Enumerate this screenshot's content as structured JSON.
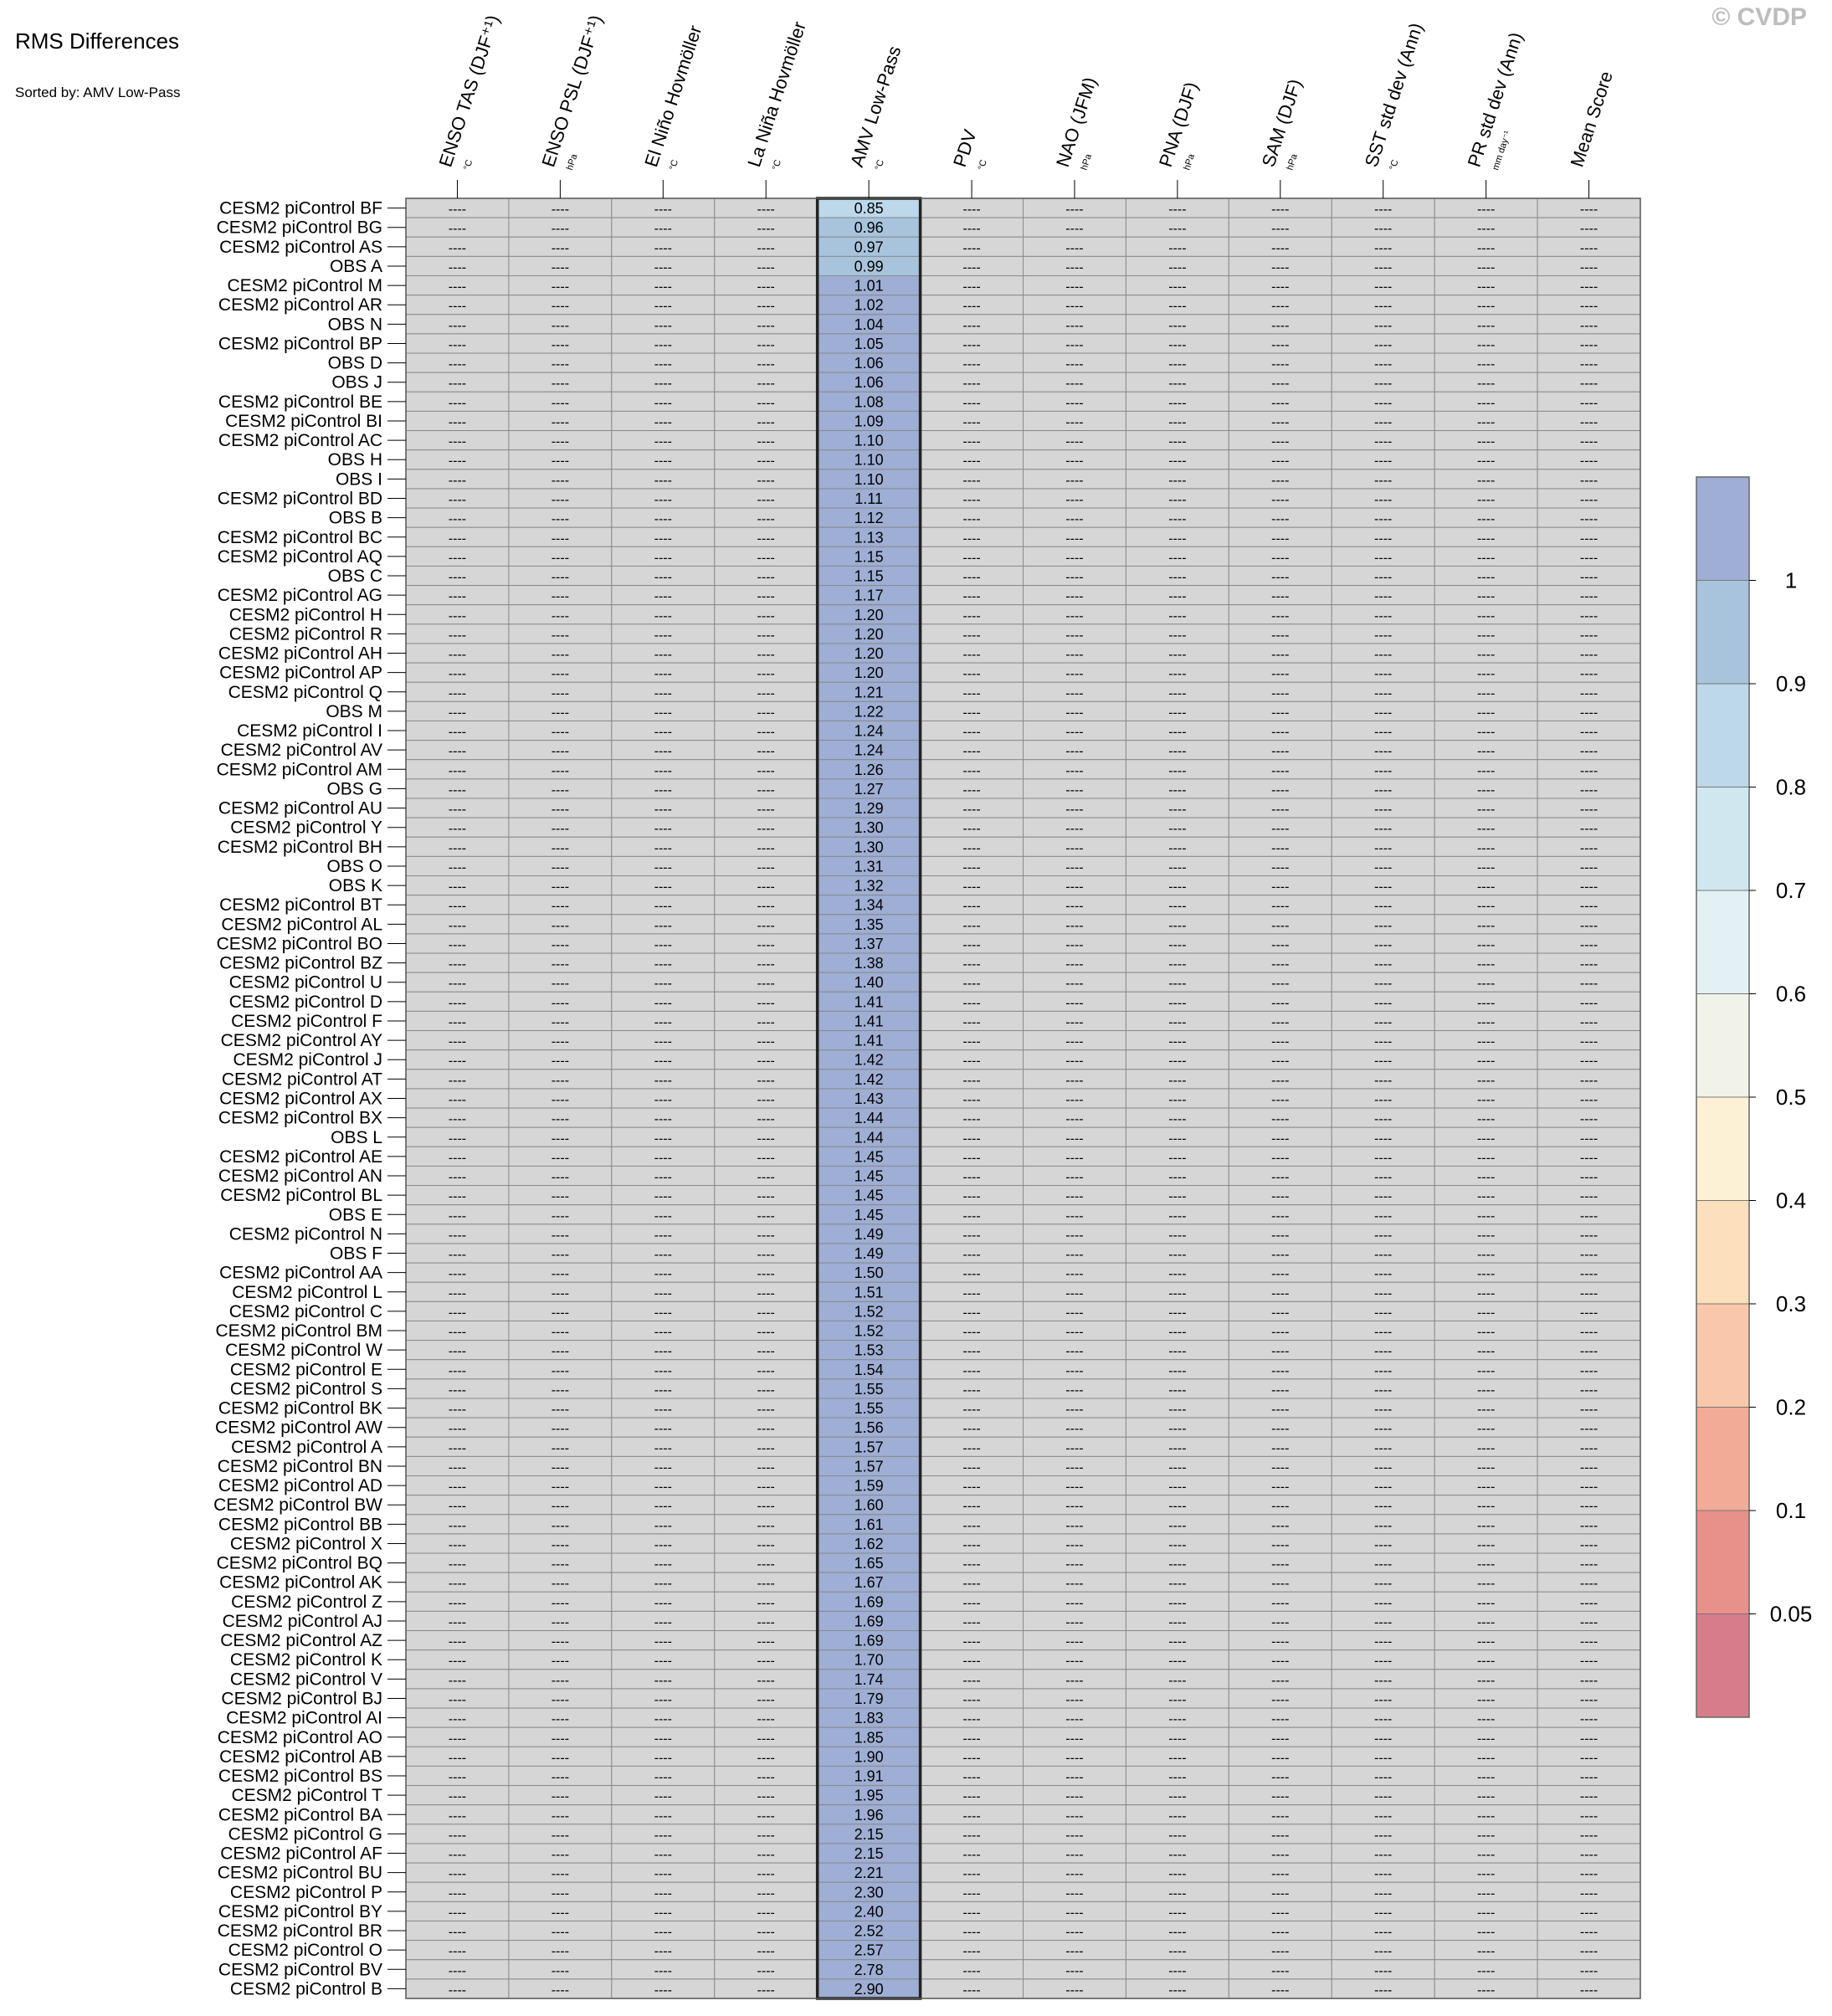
{
  "header": {
    "title": "RMS Differences",
    "subtitle": "Sorted by: AMV Low-Pass",
    "watermark": "© CVDP"
  },
  "chart_data": {
    "type": "heatmap",
    "columns": [
      {
        "label": "ENSO TAS (DJF⁺¹)",
        "unit": "°C"
      },
      {
        "label": "ENSO PSL (DJF⁺¹)",
        "unit": "hPa"
      },
      {
        "label": "El Niño Hovmöller",
        "unit": "°C"
      },
      {
        "label": "La Niña Hovmöller",
        "unit": "°C"
      },
      {
        "label": "AMV Low-Pass",
        "unit": "°C"
      },
      {
        "label": "PDV",
        "unit": "°C"
      },
      {
        "label": "NAO (JFM)",
        "unit": "hPa"
      },
      {
        "label": "PNA (DJF)",
        "unit": "hPa"
      },
      {
        "label": "SAM (DJF)",
        "unit": "hPa"
      },
      {
        "label": "SST std dev (Ann)",
        "unit": "°C"
      },
      {
        "label": "PR std dev (Ann)",
        "unit": "mm day⁻¹"
      },
      {
        "label": "Mean Score",
        "unit": ""
      }
    ],
    "highlighted_column": 4,
    "missing_symbol": "----",
    "missing_color": "#d6d6d6",
    "rows": [
      "CESM2 piControl BF",
      "CESM2 piControl BG",
      "CESM2 piControl AS",
      "OBS A",
      "CESM2 piControl M",
      "CESM2 piControl AR",
      "OBS N",
      "CESM2 piControl BP",
      "OBS D",
      "OBS J",
      "CESM2 piControl BE",
      "CESM2 piControl BI",
      "CESM2 piControl AC",
      "OBS H",
      "OBS I",
      "CESM2 piControl BD",
      "OBS B",
      "CESM2 piControl BC",
      "CESM2 piControl AQ",
      "OBS C",
      "CESM2 piControl AG",
      "CESM2 piControl H",
      "CESM2 piControl R",
      "CESM2 piControl AH",
      "CESM2 piControl AP",
      "CESM2 piControl Q",
      "OBS M",
      "CESM2 piControl I",
      "CESM2 piControl AV",
      "CESM2 piControl AM",
      "OBS G",
      "CESM2 piControl AU",
      "CESM2 piControl Y",
      "CESM2 piControl BH",
      "OBS O",
      "OBS K",
      "CESM2 piControl BT",
      "CESM2 piControl AL",
      "CESM2 piControl BO",
      "CESM2 piControl BZ",
      "CESM2 piControl U",
      "CESM2 piControl D",
      "CESM2 piControl F",
      "CESM2 piControl AY",
      "CESM2 piControl J",
      "CESM2 piControl AT",
      "CESM2 piControl AX",
      "CESM2 piControl BX",
      "OBS L",
      "CESM2 piControl AE",
      "CESM2 piControl AN",
      "CESM2 piControl BL",
      "OBS E",
      "CESM2 piControl N",
      "OBS F",
      "CESM2 piControl AA",
      "CESM2 piControl L",
      "CESM2 piControl C",
      "CESM2 piControl BM",
      "CESM2 piControl W",
      "CESM2 piControl E",
      "CESM2 piControl S",
      "CESM2 piControl BK",
      "CESM2 piControl AW",
      "CESM2 piControl A",
      "CESM2 piControl BN",
      "CESM2 piControl AD",
      "CESM2 piControl BW",
      "CESM2 piControl BB",
      "CESM2 piControl X",
      "CESM2 piControl BQ",
      "CESM2 piControl AK",
      "CESM2 piControl Z",
      "CESM2 piControl AJ",
      "CESM2 piControl AZ",
      "CESM2 piControl K",
      "CESM2 piControl V",
      "CESM2 piControl BJ",
      "CESM2 piControl AI",
      "CESM2 piControl AO",
      "CESM2 piControl AB",
      "CESM2 piControl BS",
      "CESM2 piControl T",
      "CESM2 piControl BA",
      "CESM2 piControl G",
      "CESM2 piControl AF",
      "CESM2 piControl BU",
      "CESM2 piControl P",
      "CESM2 piControl BY",
      "CESM2 piControl BR",
      "CESM2 piControl O",
      "CESM2 piControl BV",
      "CESM2 piControl B"
    ],
    "amv_values": [
      "0.85",
      "0.96",
      "0.97",
      "0.99",
      "1.01",
      "1.02",
      "1.04",
      "1.05",
      "1.06",
      "1.06",
      "1.08",
      "1.09",
      "1.10",
      "1.10",
      "1.10",
      "1.11",
      "1.12",
      "1.13",
      "1.15",
      "1.15",
      "1.17",
      "1.20",
      "1.20",
      "1.20",
      "1.20",
      "1.21",
      "1.22",
      "1.24",
      "1.24",
      "1.26",
      "1.27",
      "1.29",
      "1.30",
      "1.30",
      "1.31",
      "1.32",
      "1.34",
      "1.35",
      "1.37",
      "1.38",
      "1.40",
      "1.41",
      "1.41",
      "1.41",
      "1.42",
      "1.42",
      "1.43",
      "1.44",
      "1.44",
      "1.45",
      "1.45",
      "1.45",
      "1.45",
      "1.49",
      "1.49",
      "1.50",
      "1.51",
      "1.52",
      "1.52",
      "1.53",
      "1.54",
      "1.55",
      "1.55",
      "1.56",
      "1.57",
      "1.57",
      "1.59",
      "1.60",
      "1.61",
      "1.62",
      "1.65",
      "1.67",
      "1.69",
      "1.69",
      "1.69",
      "1.70",
      "1.74",
      "1.79",
      "1.83",
      "1.85",
      "1.90",
      "1.91",
      "1.95",
      "1.96",
      "2.15",
      "2.15",
      "2.21",
      "2.30",
      "2.40",
      "2.52",
      "2.57",
      "2.78",
      "2.90"
    ],
    "colorbar": {
      "labels": [
        "1",
        "0.9",
        "0.8",
        "0.7",
        "0.6",
        "0.5",
        "0.4",
        "0.3",
        "0.2",
        "0.1",
        "0.05"
      ],
      "colors": [
        "#9eaed4",
        "#a8c4dd",
        "#bcd8ea",
        "#d1e7ef",
        "#e3f1f4",
        "#f2f3e8",
        "#fcf1d5",
        "#fcdfbd",
        "#f9c8aa",
        "#f2ab96",
        "#e8908a",
        "#d67c8a"
      ]
    }
  }
}
